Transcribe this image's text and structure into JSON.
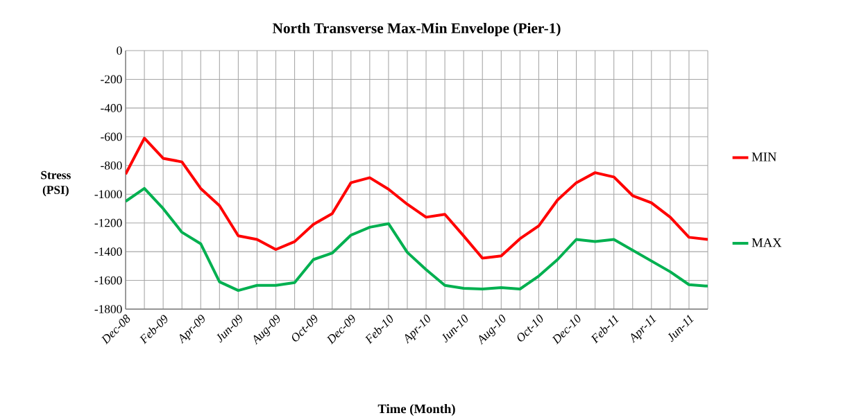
{
  "chart_data": {
    "type": "line",
    "title": "North Transverse Max-Min Envelope (Pier-1)",
    "xlabel": "Time (Month)",
    "ylabel": "Stress (PSI)",
    "categories": [
      "Dec-08",
      null,
      "Feb-09",
      null,
      "Apr-09",
      null,
      "Jun-09",
      null,
      "Aug-09",
      null,
      "Oct-09",
      null,
      "Dec-09",
      null,
      "Feb-10",
      null,
      "Apr-10",
      null,
      "Jun-10",
      null,
      "Aug-10",
      null,
      "Oct-10",
      null,
      "Dec-10",
      null,
      "Feb-11",
      null,
      "Apr-11",
      null,
      "Jun-11",
      null
    ],
    "series": [
      {
        "name": "MIN",
        "color": "#ff0000",
        "values": [
          -860,
          -610,
          -750,
          -775,
          -960,
          -1080,
          -1290,
          -1315,
          -1385,
          -1330,
          -1210,
          -1135,
          -920,
          -885,
          -965,
          -1070,
          -1160,
          -1140,
          -1290,
          -1445,
          -1430,
          -1310,
          -1220,
          -1040,
          -920,
          -850,
          -880,
          -1010,
          -1060,
          -1160,
          -1300,
          -1315
        ]
      },
      {
        "name": "MAX",
        "color": "#00b050",
        "values": [
          -1050,
          -960,
          -1100,
          -1265,
          -1345,
          -1610,
          -1670,
          -1635,
          -1635,
          -1615,
          -1455,
          -1410,
          -1285,
          -1230,
          -1205,
          -1405,
          -1525,
          -1635,
          -1655,
          -1660,
          -1650,
          -1660,
          -1570,
          -1455,
          -1315,
          -1330,
          -1315,
          -1390,
          -1465,
          -1540,
          -1630,
          -1640
        ]
      }
    ],
    "ylim": [
      -1800,
      0
    ],
    "yticks": [
      -1800,
      -1600,
      -1400,
      -1200,
      -1000,
      -800,
      -600,
      -400,
      -200,
      0
    ],
    "grid": true,
    "legend": "right"
  }
}
